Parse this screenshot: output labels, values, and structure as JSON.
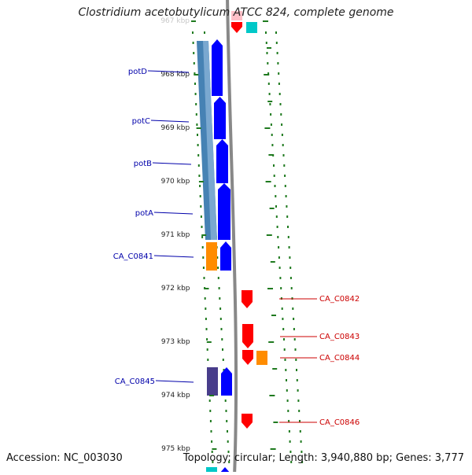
{
  "title": "Clostridium acetobutylicum ATCC 824, complete genome",
  "accession": "Accession: NC_003030",
  "summary": "Topology: circular; Length: 3,940,880 bp; Genes: 3,777",
  "colors": {
    "ruler_tick": "#1f7a1f",
    "backbone": "#888888",
    "cds_forward": "#0000ff",
    "cds_reverse": "#ff0000",
    "orange_feature": "#ff8c00",
    "blue_feature": "#4682b4",
    "purple_feature": "#483d8b",
    "cyan_feature": "#00c8c8",
    "left_label": "#0000aa",
    "right_label": "#cc0000"
  },
  "ruler": [
    {
      "label": "967 kbp",
      "faded": true
    },
    {
      "label": "968 kbp"
    },
    {
      "label": "969 kbp"
    },
    {
      "label": "970 kbp"
    },
    {
      "label": "971 kbp"
    },
    {
      "label": "972 kbp"
    },
    {
      "label": "973 kbp"
    },
    {
      "label": "974 kbp"
    },
    {
      "label": "975 kbp"
    }
  ],
  "left_labels": [
    "potD",
    "potC",
    "potB",
    "potA",
    "CA_C0841",
    "CA_C0845"
  ],
  "right_labels": [
    "CA_C0842",
    "CA_C0843",
    "CA_C0844",
    "CA_C0846"
  ]
}
